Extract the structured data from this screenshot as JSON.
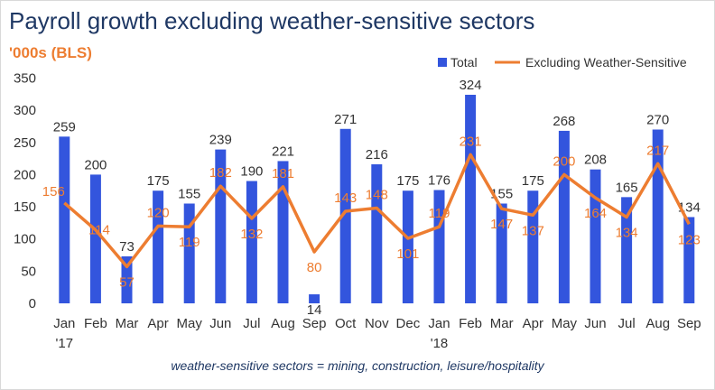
{
  "title": "Payroll growth excluding weather-sensitive sectors",
  "subtitle": "'000s (BLS)",
  "footnote": "weather-sensitive sectors = mining, construction, leisure/hospitality",
  "colors": {
    "total": "#3355dd",
    "excluding": "#ed7d31",
    "title": "#1f3864"
  },
  "chart_data": {
    "type": "bar",
    "categories": [
      "Jan",
      "Feb",
      "Mar",
      "Apr",
      "May",
      "Jun",
      "Jul",
      "Aug",
      "Sep",
      "Oct",
      "Nov",
      "Dec",
      "Jan",
      "Feb",
      "Mar",
      "Apr",
      "May",
      "Jun",
      "Jul",
      "Aug",
      "Sep"
    ],
    "year_labels": [
      "'17",
      "",
      "",
      "",
      "",
      "",
      "",
      "",
      "",
      "",
      "",
      "",
      "'18",
      "",
      "",
      "",
      "",
      "",
      "",
      "",
      ""
    ],
    "ylim": [
      0,
      350
    ],
    "yticks": [
      0,
      50,
      100,
      150,
      200,
      250,
      300,
      350
    ],
    "legend_position": "top-right",
    "grid": false,
    "series": [
      {
        "name": "Total",
        "type": "bar",
        "values": [
          259,
          200,
          73,
          175,
          155,
          239,
          190,
          221,
          14,
          271,
          216,
          175,
          176,
          324,
          155,
          175,
          268,
          208,
          165,
          270,
          134
        ]
      },
      {
        "name": "Excluding Weather-Sensitive",
        "type": "line",
        "values": [
          156,
          114,
          57,
          120,
          119,
          182,
          132,
          181,
          80,
          143,
          148,
          101,
          119,
          231,
          147,
          137,
          200,
          164,
          134,
          217,
          123
        ]
      }
    ]
  }
}
